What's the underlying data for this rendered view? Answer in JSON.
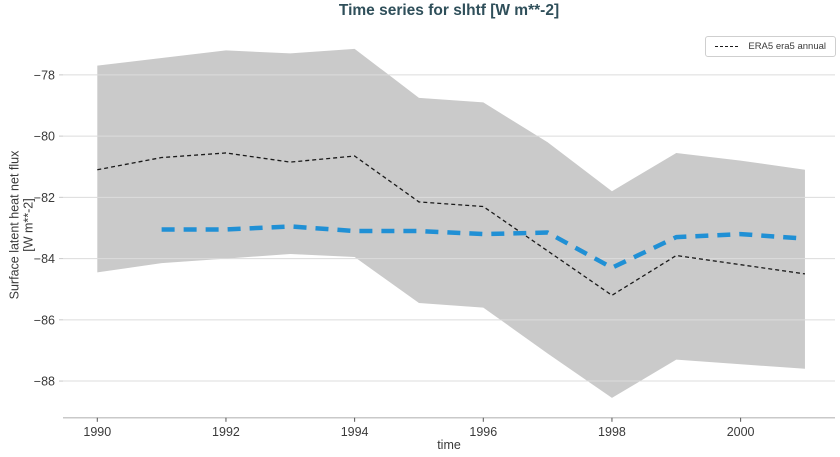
{
  "title": "Time series for slhtf [W m**-2]",
  "legend": {
    "entries": [
      {
        "label": "ERA5 era5 annual",
        "style": "black-dashed-line"
      }
    ]
  },
  "axes": {
    "x": {
      "label": "time",
      "tick_labels": [
        "1990",
        "1992",
        "1994",
        "1996",
        "1998",
        "2000"
      ]
    },
    "y": {
      "label_line1": "Surface latent heat net flux",
      "label_line2": "[W m**-2]",
      "tick_labels": [
        "−78",
        "−80",
        "−82",
        "−84",
        "−86",
        "−88"
      ]
    }
  },
  "colors": {
    "title": "#2f4f5a",
    "text": "#3a3a3a",
    "grid": "#dcdcdc",
    "spine": "#c9c9c9",
    "tick": "#555555",
    "band": "#cacaca",
    "era5_line": "#1a1a1a",
    "blue_line": "#2090d5"
  },
  "chart_data": {
    "type": "line",
    "title": "Time series for slhtf [W m**-2]",
    "xlabel": "time",
    "ylabel": "Surface latent heat net flux [W m**-2]",
    "x": [
      1990,
      1991,
      1992,
      1993,
      1994,
      1995,
      1996,
      1997,
      1998,
      1999,
      2000,
      2001
    ],
    "series": [
      {
        "name": "ERA5 era5 annual",
        "color": "#1a1a1a",
        "style": "dashed",
        "width": 1.3,
        "dash": "4 3",
        "values": [
          -81.1,
          -80.7,
          -80.55,
          -80.85,
          -80.65,
          -82.15,
          -82.3,
          -83.75,
          -85.2,
          -83.9,
          -84.2,
          -84.5
        ]
      },
      {
        "name": "thick blue dashed annual mean (unlabeled)",
        "color": "#2090d5",
        "style": "dashed",
        "width": 4.5,
        "dash": "13 9",
        "values": [
          null,
          -83.05,
          -83.05,
          -82.95,
          -83.1,
          -83.1,
          -83.2,
          -83.15,
          -84.3,
          -83.3,
          -83.2,
          -83.35
        ]
      }
    ],
    "band": {
      "name": "gray uncertainty band",
      "color": "#cacaca",
      "upper": [
        -77.7,
        -77.45,
        -77.2,
        -77.3,
        -77.15,
        -78.75,
        -78.9,
        -80.2,
        -81.8,
        -80.55,
        -80.8,
        -81.1
      ],
      "lower": [
        -84.45,
        -84.15,
        -84.0,
        -83.85,
        -83.95,
        -85.45,
        -85.6,
        -87.1,
        -88.55,
        -87.3,
        -87.45,
        -87.6
      ]
    },
    "xticks": [
      1990,
      1992,
      1994,
      1996,
      1998,
      2000
    ],
    "yticks": [
      -78,
      -80,
      -82,
      -84,
      -86,
      -88
    ],
    "xlim": [
      1989.467,
      2001.467
    ],
    "ylim": [
      -89.2,
      -76.6
    ],
    "grid": true,
    "legend_position": "upper right"
  }
}
